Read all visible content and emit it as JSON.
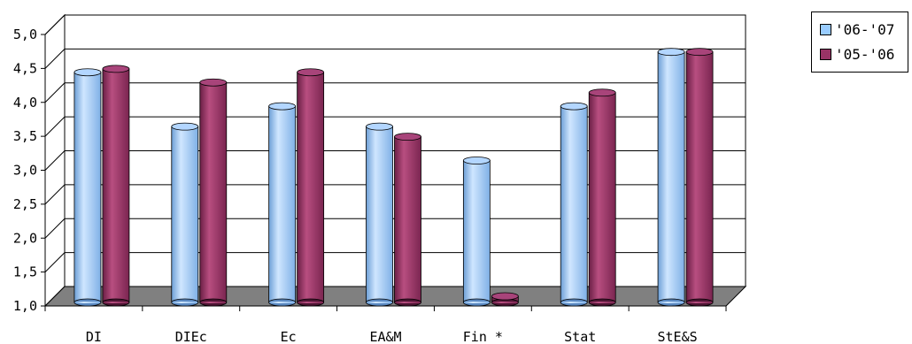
{
  "chart_data": {
    "type": "bar",
    "categories": [
      "DI",
      "DIEc",
      "Ec",
      "EA&M",
      "Fin *",
      "Stat",
      "StE&S"
    ],
    "series": [
      {
        "name": "'06-'07",
        "values": [
          4.3,
          3.5,
          3.8,
          3.5,
          3.0,
          3.8,
          4.6
        ],
        "color": "#99ccff"
      },
      {
        "name": "'05-'06",
        "values": [
          4.35,
          4.15,
          4.3,
          3.35,
          1.0,
          4.0,
          4.6
        ],
        "color": "#993366"
      }
    ],
    "ylim": [
      1.0,
      5.0
    ],
    "yticks": [
      "1,0",
      "1,5",
      "2,0",
      "2,5",
      "3,0",
      "3,5",
      "4,0",
      "4,5",
      "5,0"
    ],
    "grid": true,
    "legend_position": "top-right",
    "style": "3d-cylinder"
  }
}
